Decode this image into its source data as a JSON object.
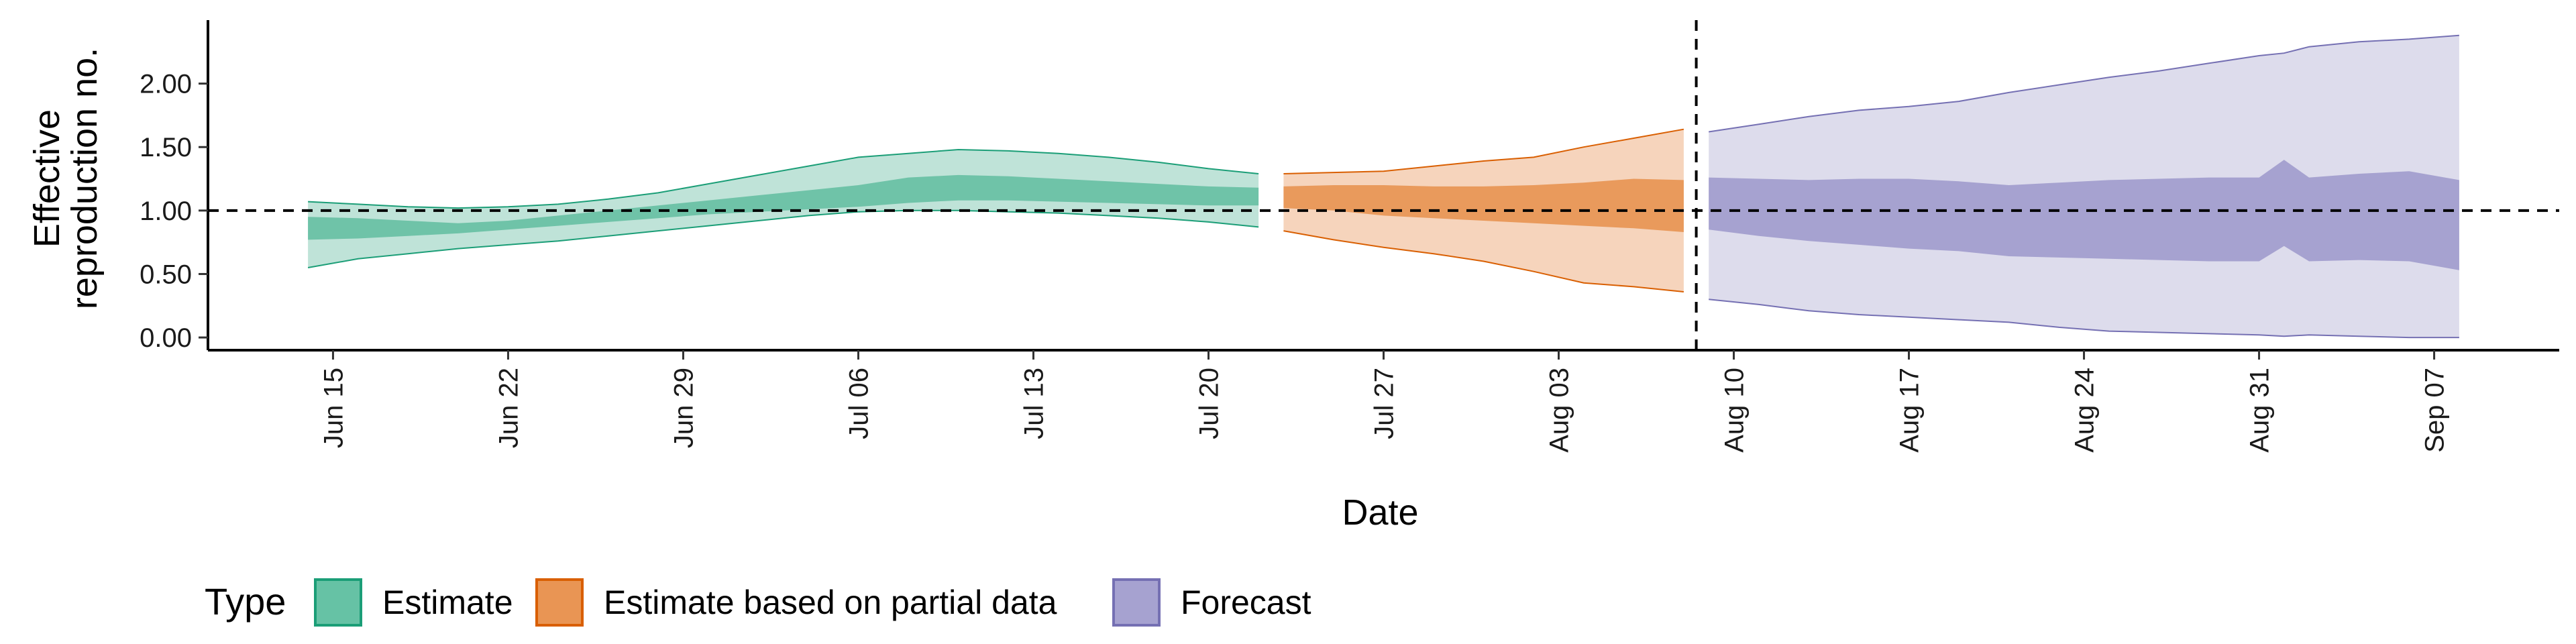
{
  "chart_data": {
    "type": "area",
    "xlabel": "Date",
    "ylabel_lines": [
      "Effective",
      "reproduction no."
    ],
    "ylim": [
      -0.1,
      2.5
    ],
    "y_ticks": [
      0.0,
      0.5,
      1.0,
      1.5,
      2.0
    ],
    "y_tick_labels": [
      "0.00",
      "0.50",
      "1.00",
      "1.50",
      "2.00"
    ],
    "x_start": "2020-06-10",
    "x_end": "2020-09-12",
    "x_ticks": [
      "2020-06-15",
      "2020-06-22",
      "2020-06-29",
      "2020-07-06",
      "2020-07-13",
      "2020-07-20",
      "2020-07-27",
      "2020-08-03",
      "2020-08-10",
      "2020-08-17",
      "2020-08-24",
      "2020-08-31",
      "2020-09-07"
    ],
    "x_tick_labels": [
      "Jun 15",
      "Jun 22",
      "Jun 29",
      "Jul 06",
      "Jul 13",
      "Jul 20",
      "Jul 27",
      "Aug 03",
      "Aug 10",
      "Aug 17",
      "Aug 24",
      "Aug 31",
      "Sep 07"
    ],
    "reference_line_y": 1.0,
    "forecast_start_line": "2020-08-08",
    "grid": false,
    "legend": {
      "title": "Type",
      "placement": "bottom-left",
      "items": [
        {
          "label": "Estimate",
          "fill": "#66c2a5",
          "stroke": "#1b9e77"
        },
        {
          "label": "Estimate based on partial data",
          "fill": "#e99554",
          "stroke": "#d95f02"
        },
        {
          "label": "Forecast",
          "fill": "#a6a2d0",
          "stroke": "#7570b3"
        }
      ]
    },
    "series": [
      {
        "name": "Estimate",
        "outer_fill": "#bfe3d8",
        "inner_fill": "#6fc3a8",
        "stroke": "#1b9e77",
        "x": [
          "2020-06-14",
          "2020-06-16",
          "2020-06-18",
          "2020-06-20",
          "2020-06-22",
          "2020-06-24",
          "2020-06-26",
          "2020-06-28",
          "2020-06-30",
          "2020-07-02",
          "2020-07-04",
          "2020-07-06",
          "2020-07-08",
          "2020-07-10",
          "2020-07-12",
          "2020-07-14",
          "2020-07-16",
          "2020-07-18",
          "2020-07-20",
          "2020-07-22"
        ],
        "lower_90": [
          0.55,
          0.62,
          0.66,
          0.7,
          0.73,
          0.76,
          0.8,
          0.84,
          0.88,
          0.92,
          0.96,
          0.99,
          1.0,
          1.0,
          0.99,
          0.98,
          0.96,
          0.94,
          0.91,
          0.87
        ],
        "upper_90": [
          1.07,
          1.05,
          1.03,
          1.02,
          1.03,
          1.05,
          1.09,
          1.14,
          1.21,
          1.28,
          1.35,
          1.42,
          1.45,
          1.48,
          1.47,
          1.45,
          1.42,
          1.38,
          1.33,
          1.29
        ],
        "lower_50": [
          0.77,
          0.78,
          0.8,
          0.82,
          0.85,
          0.88,
          0.91,
          0.94,
          0.97,
          0.99,
          1.01,
          1.03,
          1.06,
          1.08,
          1.08,
          1.07,
          1.06,
          1.05,
          1.04,
          1.04
        ],
        "upper_50": [
          0.95,
          0.94,
          0.92,
          0.9,
          0.92,
          0.96,
          1.0,
          1.04,
          1.08,
          1.12,
          1.16,
          1.2,
          1.26,
          1.28,
          1.27,
          1.25,
          1.23,
          1.21,
          1.19,
          1.18
        ]
      },
      {
        "name": "Estimate based on partial data",
        "outer_fill": "#f6d4bc",
        "inner_fill": "#e99a5c",
        "stroke": "#d95f02",
        "x": [
          "2020-07-23",
          "2020-07-25",
          "2020-07-27",
          "2020-07-29",
          "2020-07-31",
          "2020-08-02",
          "2020-08-04",
          "2020-08-06",
          "2020-08-08"
        ],
        "lower_90": [
          0.84,
          0.77,
          0.71,
          0.66,
          0.6,
          0.52,
          0.43,
          0.4,
          0.36
        ],
        "upper_90": [
          1.29,
          1.3,
          1.31,
          1.35,
          1.39,
          1.42,
          1.5,
          1.57,
          1.64
        ],
        "lower_50": [
          1.02,
          1.0,
          0.96,
          0.94,
          0.92,
          0.9,
          0.88,
          0.86,
          0.83
        ],
        "upper_50": [
          1.19,
          1.2,
          1.2,
          1.19,
          1.19,
          1.2,
          1.22,
          1.25,
          1.24
        ]
      },
      {
        "name": "Forecast",
        "outer_fill": "#dddcec",
        "inner_fill": "#a6a2d0",
        "stroke": "#7570b3",
        "x": [
          "2020-08-09",
          "2020-08-11",
          "2020-08-13",
          "2020-08-15",
          "2020-08-17",
          "2020-08-19",
          "2020-08-21",
          "2020-08-23",
          "2020-08-25",
          "2020-08-27",
          "2020-08-29",
          "2020-08-31",
          "2020-09-01",
          "2020-09-02",
          "2020-09-04",
          "2020-09-06",
          "2020-09-08"
        ],
        "lower_90": [
          0.3,
          0.26,
          0.21,
          0.18,
          0.16,
          0.14,
          0.12,
          0.08,
          0.05,
          0.04,
          0.03,
          0.02,
          0.01,
          0.02,
          0.01,
          0.0,
          0.0
        ],
        "upper_90": [
          1.62,
          1.68,
          1.74,
          1.79,
          1.82,
          1.86,
          1.93,
          1.99,
          2.05,
          2.1,
          2.16,
          2.22,
          2.24,
          2.29,
          2.33,
          2.35,
          2.38
        ],
        "lower_50": [
          0.85,
          0.8,
          0.76,
          0.73,
          0.7,
          0.68,
          0.64,
          0.63,
          0.62,
          0.61,
          0.6,
          0.6,
          0.72,
          0.6,
          0.61,
          0.6,
          0.53
        ],
        "upper_50": [
          1.26,
          1.25,
          1.24,
          1.25,
          1.25,
          1.23,
          1.2,
          1.22,
          1.24,
          1.25,
          1.26,
          1.26,
          1.4,
          1.26,
          1.29,
          1.31,
          1.24
        ]
      }
    ]
  }
}
